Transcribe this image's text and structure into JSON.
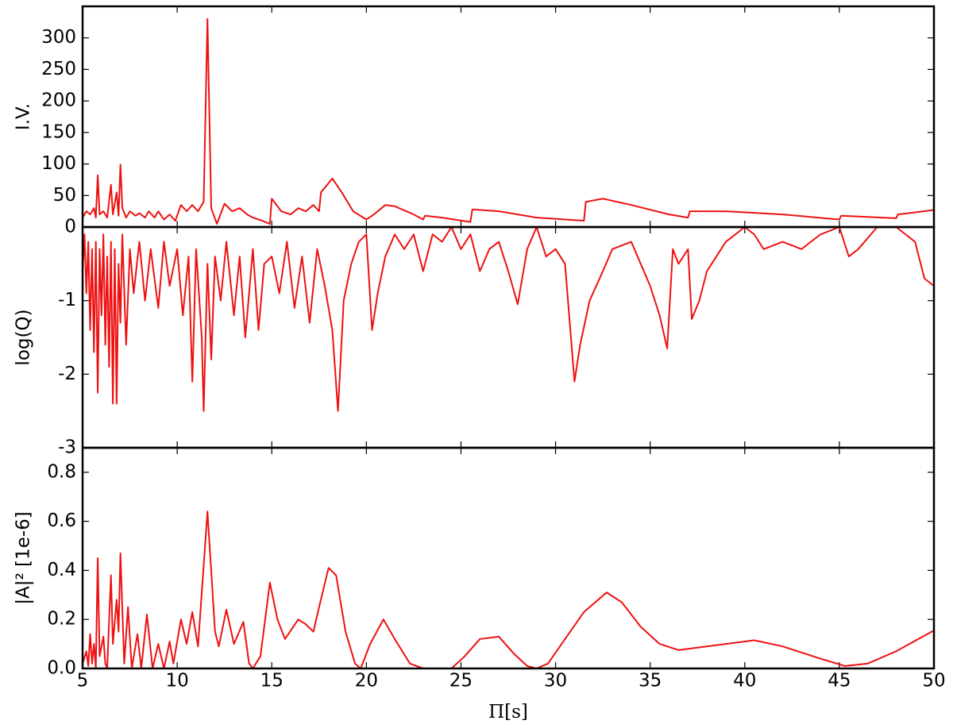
{
  "chart_data": [
    {
      "type": "line",
      "y_label": "I.V.",
      "x": [
        5,
        5.2,
        5.4,
        5.6,
        5.7,
        5.8,
        5.9,
        6.1,
        6.3,
        6.5,
        6.6,
        6.8,
        6.9,
        7.0,
        7.1,
        7.3,
        7.5,
        7.8,
        8.0,
        8.3,
        8.5,
        8.8,
        9.0,
        9.3,
        9.6,
        9.9,
        10.2,
        10.5,
        10.8,
        11.1,
        11.4,
        11.6,
        11.8,
        12.1,
        12.5,
        12.9,
        13.3,
        13.7,
        14.0,
        14.5,
        14.9,
        15.0,
        15.5,
        16.0,
        16.4,
        16.8,
        17.2,
        17.5,
        17.6,
        18.2,
        18.7,
        19.3,
        20.0,
        20.4,
        21.0,
        21.5,
        22.5,
        23.0,
        23.1,
        24.0,
        25.5,
        25.6,
        27,
        29,
        31.5,
        31.6,
        32.5,
        34,
        36,
        37,
        37.1,
        39,
        42,
        45,
        45.1,
        48,
        48.1,
        50
      ],
      "series": [
        {
          "color": "#ee1111",
          "values": [
            15,
            25,
            20,
            30,
            15,
            82,
            20,
            25,
            15,
            67,
            20,
            55,
            18,
            99,
            30,
            15,
            25,
            18,
            22,
            15,
            25,
            15,
            25,
            12,
            20,
            10,
            35,
            25,
            35,
            25,
            40,
            330,
            30,
            5,
            37,
            25,
            30,
            20,
            15,
            10,
            5,
            45,
            25,
            20,
            30,
            25,
            35,
            25,
            55,
            77,
            55,
            25,
            12,
            20,
            35,
            33,
            20,
            12,
            18,
            15,
            8,
            28,
            25,
            15,
            10,
            40,
            45,
            35,
            20,
            15,
            25,
            25,
            20,
            12,
            18,
            14,
            20,
            27
          ]
        }
      ],
      "xlim": [
        5,
        50
      ],
      "ylim": [
        0,
        350
      ],
      "yticks": [
        0,
        50,
        100,
        150,
        200,
        250,
        300
      ]
    },
    {
      "type": "line",
      "y_label": "log(Q)",
      "x": [
        5,
        5.1,
        5.2,
        5.3,
        5.4,
        5.5,
        5.6,
        5.7,
        5.8,
        5.9,
        6.0,
        6.1,
        6.2,
        6.3,
        6.4,
        6.5,
        6.6,
        6.7,
        6.8,
        6.9,
        7.0,
        7.1,
        7.3,
        7.5,
        7.7,
        8.0,
        8.3,
        8.6,
        9.0,
        9.3,
        9.6,
        10.0,
        10.3,
        10.6,
        10.8,
        11.0,
        11.3,
        11.4,
        11.6,
        11.8,
        12.0,
        12.3,
        12.6,
        13.0,
        13.3,
        13.6,
        14.0,
        14.3,
        14.6,
        15.0,
        15.4,
        15.8,
        16.2,
        16.6,
        17.0,
        17.4,
        17.8,
        18.2,
        18.5,
        18.8,
        19.2,
        19.6,
        20.0,
        20.3,
        20.6,
        21.0,
        21.5,
        22.0,
        22.5,
        23.0,
        23.5,
        24.0,
        24.5,
        25.0,
        25.5,
        26.0,
        26.5,
        27.0,
        27.5,
        28.0,
        28.5,
        29.0,
        29.5,
        30.0,
        30.5,
        31.0,
        31.3,
        31.8,
        32.5,
        33.0,
        34.0,
        34.5,
        35.0,
        35.5,
        35.9,
        36.2,
        36.5,
        37.0,
        37.2,
        37.6,
        38.0,
        39.0,
        40.0,
        40.5,
        41.0,
        42.0,
        43.0,
        44.0,
        45.0,
        45.5,
        46.0,
        47.0,
        48.0,
        49.0,
        49.5,
        50.0
      ],
      "series": [
        {
          "color": "#ee1111",
          "values": [
            -0.6,
            -0.1,
            -0.9,
            -0.2,
            -1.4,
            -0.3,
            -1.7,
            -0.2,
            -2.25,
            -0.3,
            -1.2,
            -0.1,
            -1.6,
            -0.4,
            -1.9,
            -0.2,
            -2.4,
            -0.3,
            -2.4,
            -0.5,
            -1.3,
            -0.1,
            -1.6,
            -0.3,
            -0.9,
            -0.2,
            -1.0,
            -0.3,
            -1.1,
            -0.2,
            -0.8,
            -0.3,
            -1.2,
            -0.4,
            -2.1,
            -0.3,
            -1.5,
            -2.5,
            -0.5,
            -1.8,
            -0.4,
            -1.0,
            -0.2,
            -1.2,
            -0.4,
            -1.5,
            -0.3,
            -1.4,
            -0.5,
            -0.4,
            -0.9,
            -0.2,
            -1.1,
            -0.4,
            -1.3,
            -0.3,
            -0.8,
            -1.4,
            -2.5,
            -1.0,
            -0.5,
            -0.2,
            -0.1,
            -1.4,
            -0.9,
            -0.4,
            -0.1,
            -0.3,
            -0.1,
            -0.6,
            -0.1,
            -0.2,
            0,
            -0.3,
            -0.1,
            -0.6,
            -0.3,
            -0.2,
            -0.6,
            -1.05,
            -0.3,
            0,
            -0.4,
            -0.3,
            -0.5,
            -2.1,
            -1.6,
            -1.0,
            -0.6,
            -0.3,
            -0.2,
            -0.5,
            -0.8,
            -1.2,
            -1.65,
            -0.3,
            -0.5,
            -0.3,
            -1.25,
            -1.0,
            -0.6,
            -0.2,
            0,
            -0.1,
            -0.3,
            -0.2,
            -0.3,
            -0.1,
            0,
            -0.4,
            -0.3,
            0,
            0,
            -0.2,
            -0.7,
            -0.8
          ]
        }
      ],
      "xlim": [
        5,
        50
      ],
      "ylim": [
        -3,
        0
      ],
      "yticks": [
        -3,
        -2,
        -1
      ]
    },
    {
      "type": "line",
      "y_label": "|A|² [1e-6]",
      "x_label": "Π[s]",
      "x": [
        5,
        5.2,
        5.3,
        5.4,
        5.5,
        5.6,
        5.7,
        5.8,
        5.9,
        6.1,
        6.2,
        6.3,
        6.5,
        6.6,
        6.8,
        6.9,
        7.0,
        7.2,
        7.4,
        7.6,
        7.9,
        8.1,
        8.4,
        8.7,
        9.0,
        9.3,
        9.6,
        9.8,
        10.2,
        10.5,
        10.8,
        11.1,
        11.6,
        12.0,
        12.2,
        12.6,
        13.0,
        13.5,
        13.8,
        14.0,
        14.4,
        14.9,
        15.3,
        15.7,
        16.4,
        16.8,
        17.2,
        17.5,
        18.0,
        18.4,
        18.9,
        19.4,
        19.7,
        20.2,
        20.9,
        21.5,
        22.3,
        23.0,
        24.5,
        25.2,
        26.0,
        27.0,
        27.8,
        28.5,
        29.0,
        29.6,
        30.5,
        31.5,
        32.7,
        33.5,
        34.5,
        35.5,
        36.5,
        37.5,
        39,
        40.5,
        42,
        44,
        45.3,
        46.5,
        48,
        50
      ],
      "series": [
        {
          "color": "#ee1111",
          "values": [
            0.02,
            0.07,
            0.01,
            0.14,
            0.02,
            0.1,
            0.0,
            0.45,
            0.05,
            0.13,
            0.02,
            0.0,
            0.38,
            0.1,
            0.28,
            0.15,
            0.47,
            0.02,
            0.25,
            0.0,
            0.14,
            0.0,
            0.22,
            0.0,
            0.1,
            0.0,
            0.11,
            0.02,
            0.2,
            0.1,
            0.23,
            0.09,
            0.64,
            0.15,
            0.09,
            0.24,
            0.1,
            0.19,
            0.02,
            0.0,
            0.05,
            0.35,
            0.2,
            0.12,
            0.2,
            0.18,
            0.15,
            0.25,
            0.41,
            0.38,
            0.15,
            0.02,
            0.0,
            0.1,
            0.2,
            0.12,
            0.02,
            0.0,
            0.0,
            0.05,
            0.12,
            0.13,
            0.06,
            0.01,
            0.0,
            0.02,
            0.12,
            0.23,
            0.31,
            0.27,
            0.17,
            0.1,
            0.075,
            0.085,
            0.1,
            0.115,
            0.09,
            0.04,
            0.01,
            0.02,
            0.07,
            0.155
          ]
        }
      ],
      "xlim": [
        5,
        50
      ],
      "ylim": [
        0,
        0.9
      ],
      "yticks": [
        {
          "value": 0,
          "label": "0.0"
        },
        0.2,
        0.4,
        0.6,
        0.8
      ],
      "xticks": [
        5,
        10,
        15,
        20,
        25,
        30,
        35,
        40,
        45,
        50
      ]
    }
  ]
}
